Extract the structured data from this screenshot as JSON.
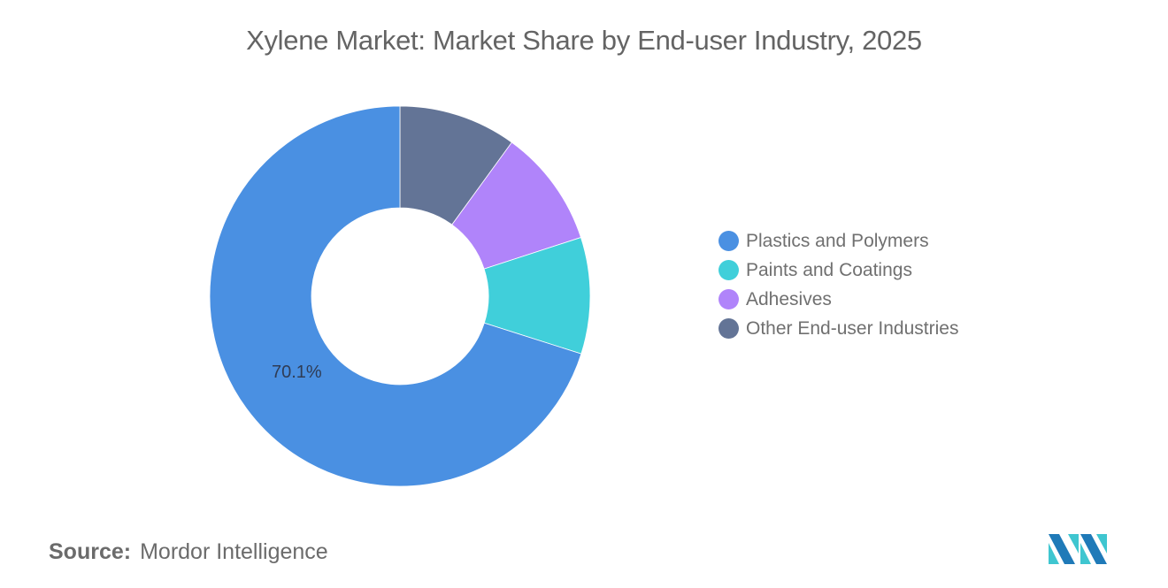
{
  "title": "Xylene Market: Market Share by End-user Industry, 2025",
  "source": {
    "label": "Source:",
    "value": "Mordor Intelligence"
  },
  "logo": {
    "name": "mordor-intelligence-logo",
    "colors": [
      "#1f7ab8",
      "#3fc6d0"
    ]
  },
  "legend": [
    {
      "label": "Plastics and Polymers",
      "color": "#4a90e2"
    },
    {
      "label": "Paints and Coatings",
      "color": "#40cfda"
    },
    {
      "label": "Adhesives",
      "color": "#b084fa"
    },
    {
      "label": "Other End-user Industries",
      "color": "#637496"
    }
  ],
  "chart_data": {
    "type": "pie",
    "subtype": "donut",
    "title": "Xylene Market: Market Share by End-user Industry, 2025",
    "categories": [
      "Plastics and Polymers",
      "Paints and Coatings",
      "Adhesives",
      "Other End-user Industries"
    ],
    "values": [
      70.1,
      9.9,
      10.0,
      10.0
    ],
    "unit": "%",
    "colors": [
      "#4a90e2",
      "#40cfda",
      "#b084fa",
      "#637496"
    ],
    "data_labels": [
      {
        "category": "Plastics and Polymers",
        "text": "70.1%"
      }
    ],
    "draw_order_clockwise_from_top": [
      "Other End-user Industries",
      "Adhesives",
      "Paints and Coatings",
      "Plastics and Polymers"
    ],
    "legend_position": "right",
    "source": "Mordor Intelligence"
  }
}
